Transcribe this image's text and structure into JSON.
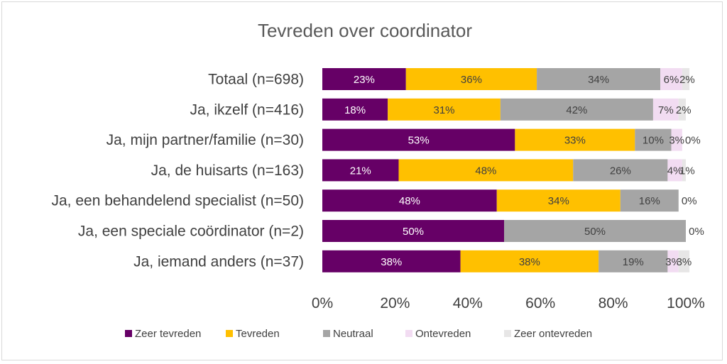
{
  "chart_data": {
    "type": "bar",
    "orientation": "horizontal",
    "stacked": true,
    "title": "Tevreden over coordinator",
    "categories": [
      "Totaal (n=698)",
      "Ja, ikzelf (n=416)",
      "Ja, mijn partner/familie (n=30)",
      "Ja, de huisarts (n=163)",
      "Ja, een behandelend specialist (n=50)",
      "Ja, een speciale coördinator (n=2)",
      "Ja, iemand anders (n=37)"
    ],
    "series": [
      {
        "name": "Zeer tevreden",
        "color": "#660066",
        "label_color": "#ffffff",
        "values": [
          23,
          18,
          53,
          21,
          48,
          50,
          38
        ],
        "labels": [
          "23%",
          "18%",
          "53%",
          "21%",
          "48%",
          "50%",
          "38%"
        ]
      },
      {
        "name": "Tevreden",
        "color": "#ffc000",
        "label_color": "#404040",
        "values": [
          36,
          31,
          33,
          48,
          34,
          0,
          38
        ],
        "labels": [
          "36%",
          "31%",
          "33%",
          "48%",
          "34%",
          "",
          "38%"
        ]
      },
      {
        "name": "Neutraal",
        "color": "#a5a5a5",
        "label_color": "#404040",
        "values": [
          34,
          42,
          10,
          26,
          16,
          50,
          19
        ],
        "labels": [
          "34%",
          "42%",
          "10%",
          "26%",
          "16%",
          "50%",
          "19%"
        ]
      },
      {
        "name": "Ontevreden",
        "color": "#f2dcf2",
        "label_color": "#404040",
        "values": [
          6,
          7,
          3,
          4,
          0,
          0,
          3
        ],
        "labels": [
          "6%",
          "7%",
          "3%",
          "4%",
          "",
          "",
          "3%"
        ]
      },
      {
        "name": "Zeer ontevreden",
        "color": "#e7e6e6",
        "label_color": "#404040",
        "values": [
          2,
          2,
          0,
          1,
          0,
          0,
          3
        ],
        "labels": [
          "2%",
          "2%",
          "0%",
          "1%",
          "0%",
          "0%",
          "3%"
        ]
      }
    ],
    "xlim": [
      0,
      100
    ],
    "xticks": [
      "0%",
      "20%",
      "40%",
      "60%",
      "80%",
      "100%"
    ],
    "legend_position": "bottom",
    "grid": false
  }
}
